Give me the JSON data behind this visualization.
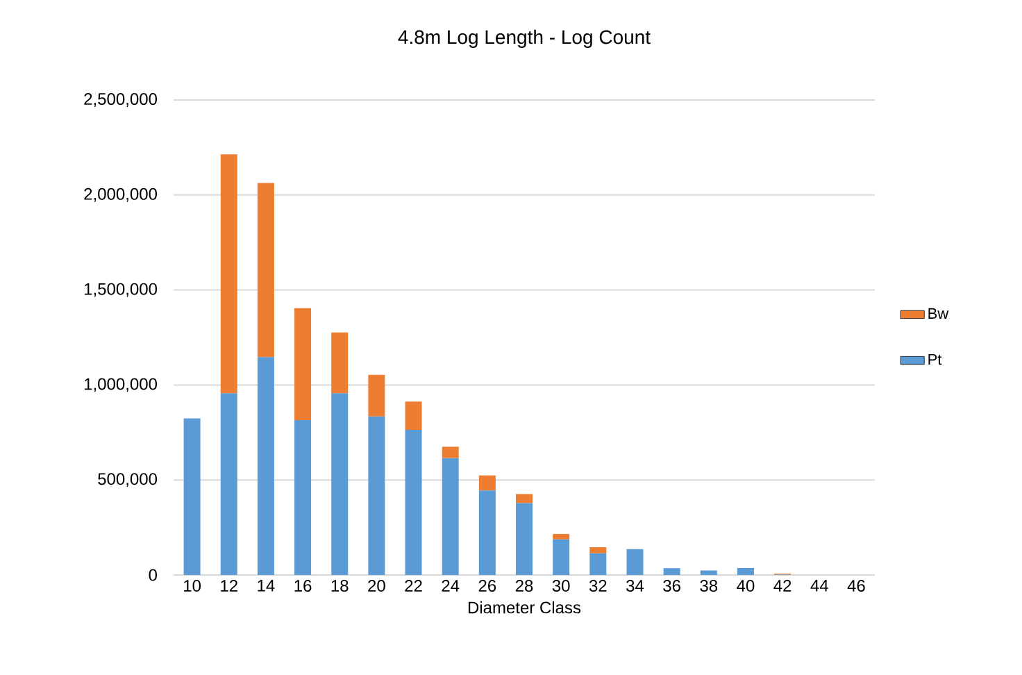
{
  "chart_data": {
    "type": "bar",
    "title": "4.8m Log Length - Log Count",
    "xlabel": "Diameter Class",
    "categories": [
      "10",
      "12",
      "14",
      "16",
      "18",
      "20",
      "22",
      "24",
      "26",
      "28",
      "30",
      "32",
      "34",
      "36",
      "38",
      "40",
      "42",
      "44",
      "46"
    ],
    "series": [
      {
        "name": "Pt",
        "color": "#5b9bd5",
        "values": [
          824000,
          957000,
          1147000,
          815000,
          957000,
          834000,
          764000,
          615000,
          445000,
          378000,
          187000,
          114000,
          136000,
          36000,
          24000,
          36000,
          2000,
          0,
          0
        ]
      },
      {
        "name": "Bw",
        "color": "#ed7d31",
        "values": [
          0,
          1257000,
          916000,
          589000,
          319000,
          219000,
          149000,
          60000,
          79000,
          48000,
          29000,
          32000,
          0,
          0,
          0,
          0,
          5000,
          0,
          0
        ]
      }
    ],
    "stacked": true,
    "ylim": [
      0,
      2500000
    ],
    "yticks": [
      {
        "value": 0,
        "label": "0"
      },
      {
        "value": 500000,
        "label": "500,000"
      },
      {
        "value": 1000000,
        "label": "1,000,000"
      },
      {
        "value": 1500000,
        "label": "1,500,000"
      },
      {
        "value": 2000000,
        "label": "2,000,000"
      },
      {
        "value": 2500000,
        "label": "2,500,000"
      }
    ],
    "grid": "y",
    "legend": "right"
  }
}
